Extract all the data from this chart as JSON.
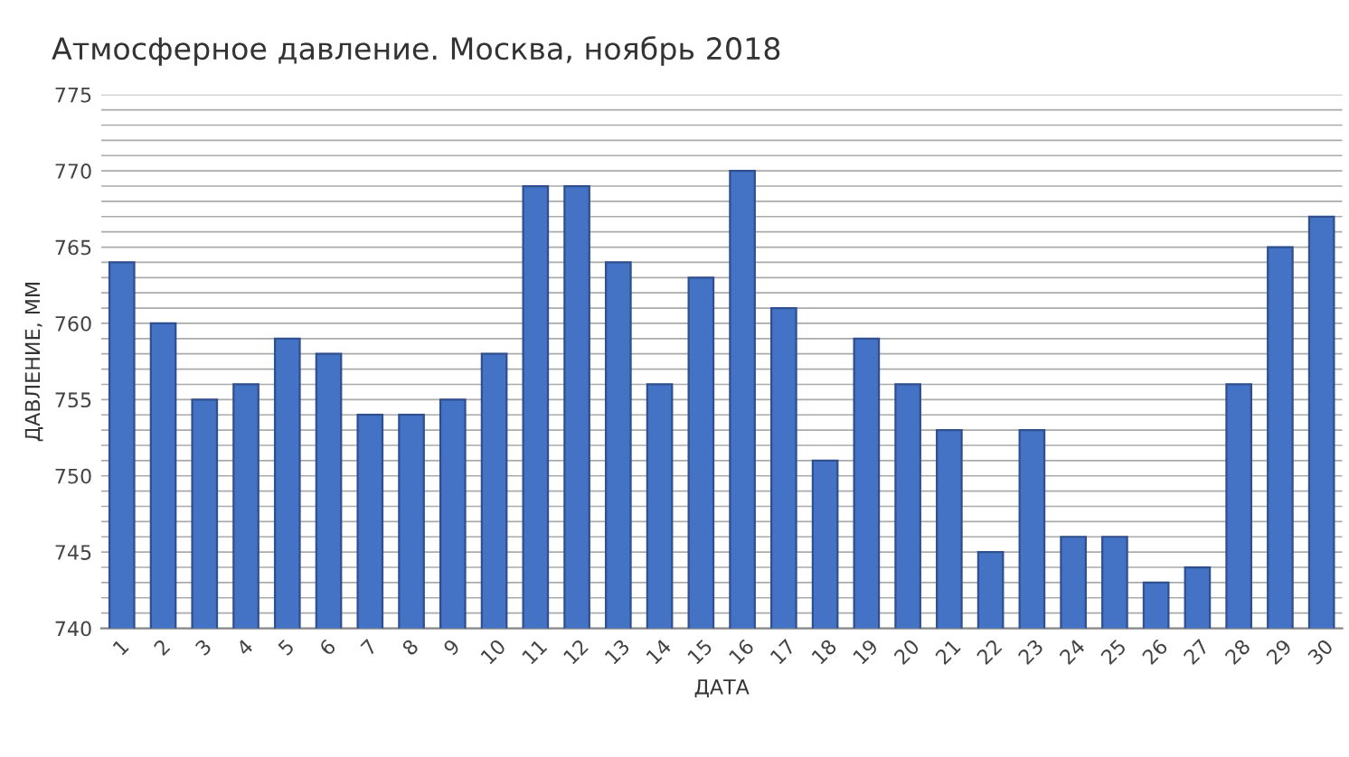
{
  "chart_data": {
    "type": "bar",
    "title": "Атмосферное давление. Москва, ноябрь 2018",
    "xlabel": "ДАТА",
    "ylabel": "ДАВЛЕНИЕ, ММ",
    "categories": [
      "1",
      "2",
      "3",
      "4",
      "5",
      "6",
      "7",
      "8",
      "9",
      "10",
      "11",
      "12",
      "13",
      "14",
      "15",
      "16",
      "17",
      "18",
      "19",
      "20",
      "21",
      "22",
      "23",
      "24",
      "25",
      "26",
      "27",
      "28",
      "29",
      "30"
    ],
    "values": [
      764,
      760,
      755,
      756,
      759,
      758,
      754,
      754,
      755,
      758,
      769,
      769,
      764,
      756,
      763,
      770,
      761,
      751,
      759,
      756,
      753,
      745,
      753,
      746,
      746,
      743,
      744,
      756,
      765,
      767
    ],
    "color": "#4472c4",
    "ylim": [
      740,
      775
    ],
    "yticks": [
      740,
      {
        "value": 741,
        "label": null
      },
      {
        "value": 742,
        "label": null
      },
      {
        "value": 743,
        "label": null
      },
      {
        "value": 744,
        "label": null
      },
      745,
      {
        "value": 746,
        "label": null
      },
      {
        "value": 747,
        "label": null
      },
      {
        "value": 748,
        "label": null
      },
      {
        "value": 749,
        "label": null
      },
      750,
      {
        "value": 751,
        "label": null
      },
      {
        "value": 752,
        "label": null
      },
      {
        "value": 753,
        "label": null
      },
      {
        "value": 754,
        "label": null
      },
      755,
      {
        "value": 756,
        "label": null
      },
      {
        "value": 757,
        "label": null
      },
      {
        "value": 758,
        "label": null
      },
      {
        "value": 759,
        "label": null
      },
      760,
      {
        "value": 761,
        "label": null
      },
      {
        "value": 762,
        "label": null
      },
      {
        "value": 763,
        "label": null
      },
      {
        "value": 764,
        "label": null
      },
      765,
      {
        "value": 766,
        "label": null
      },
      {
        "value": 767,
        "label": null
      },
      {
        "value": 768,
        "label": null
      },
      {
        "value": 769,
        "label": null
      },
      770,
      {
        "value": 771,
        "label": null
      },
      {
        "value": 772,
        "label": null
      },
      {
        "value": 773,
        "label": null
      },
      {
        "value": 774,
        "label": null
      },
      775
    ],
    "grid": "y"
  }
}
